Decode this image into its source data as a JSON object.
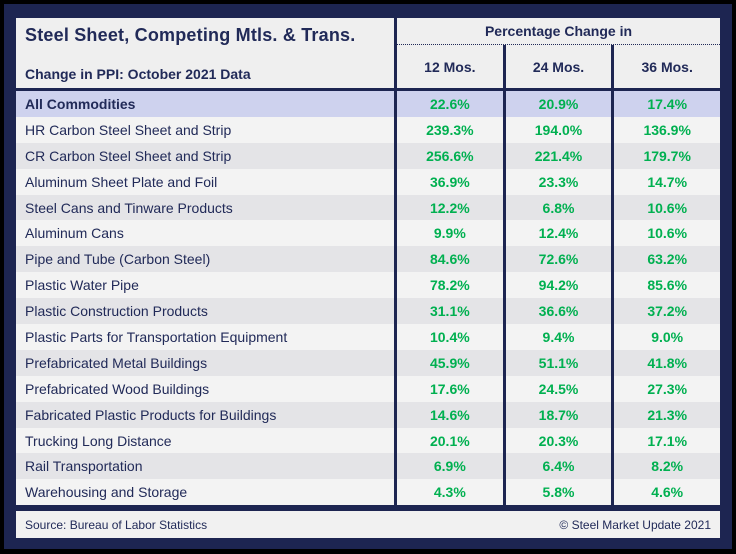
{
  "header": {
    "title": "Steel Sheet, Competing Mtls. & Trans.",
    "subtitle": "Change in PPI: October 2021 Data",
    "group_label": "Percentage Change in",
    "columns": [
      "12 Mos.",
      "24 Mos.",
      "36 Mos."
    ]
  },
  "table": {
    "rows": [
      {
        "label": "All Commodities",
        "m12": "22.6%",
        "m24": "20.9%",
        "m36": "17.4%"
      },
      {
        "label": "HR Carbon Steel Sheet and Strip",
        "m12": "239.3%",
        "m24": "194.0%",
        "m36": "136.9%"
      },
      {
        "label": "CR Carbon Steel Sheet and Strip",
        "m12": "256.6%",
        "m24": "221.4%",
        "m36": "179.7%"
      },
      {
        "label": "Aluminum Sheet Plate and Foil",
        "m12": "36.9%",
        "m24": "23.3%",
        "m36": "14.7%"
      },
      {
        "label": "Steel Cans and Tinware Products",
        "m12": "12.2%",
        "m24": "6.8%",
        "m36": "10.6%"
      },
      {
        "label": "Aluminum Cans",
        "m12": "9.9%",
        "m24": "12.4%",
        "m36": "10.6%"
      },
      {
        "label": "Pipe and Tube (Carbon Steel)",
        "m12": "84.6%",
        "m24": "72.6%",
        "m36": "63.2%"
      },
      {
        "label": "Plastic Water Pipe",
        "m12": "78.2%",
        "m24": "94.2%",
        "m36": "85.6%"
      },
      {
        "label": "Plastic Construction Products",
        "m12": "31.1%",
        "m24": "36.6%",
        "m36": "37.2%"
      },
      {
        "label": "Plastic Parts for Transportation Equipment",
        "m12": "10.4%",
        "m24": "9.4%",
        "m36": "9.0%"
      },
      {
        "label": "Prefabricated Metal Buildings",
        "m12": "45.9%",
        "m24": "51.1%",
        "m36": "41.8%"
      },
      {
        "label": "Prefabricated Wood Buildings",
        "m12": "17.6%",
        "m24": "24.5%",
        "m36": "27.3%"
      },
      {
        "label": "Fabricated Plastic Products for Buildings",
        "m12": "14.6%",
        "m24": "18.7%",
        "m36": "21.3%"
      },
      {
        "label": "Trucking Long Distance",
        "m12": "20.1%",
        "m24": "20.3%",
        "m36": "17.1%"
      },
      {
        "label": "Rail Transportation",
        "m12": "6.9%",
        "m24": "6.4%",
        "m36": "8.2%"
      },
      {
        "label": "Warehousing and Storage",
        "m12": "4.3%",
        "m24": "5.8%",
        "m36": "4.6%"
      }
    ]
  },
  "footer": {
    "source": "Source: Bureau of Labor Statistics",
    "copyright": "© Steel Market Update 2021"
  },
  "colors": {
    "frame_navy": "#1d2551",
    "text_navy": "#212a58",
    "value_green": "#00b050",
    "highlight_lavender": "#ced2ee",
    "row_light": "#f3f3f3",
    "row_dark": "#e4e4e7"
  },
  "chart_data": {
    "type": "table",
    "title": "Steel Sheet, Competing Mtls. & Trans.",
    "subtitle": "Change in PPI: October 2021 Data",
    "column_group": "Percentage Change in",
    "columns": [
      "12 Mos.",
      "24 Mos.",
      "36 Mos."
    ],
    "units": "%",
    "rows": [
      {
        "label": "All Commodities",
        "values": [
          22.6,
          20.9,
          17.4
        ]
      },
      {
        "label": "HR Carbon Steel Sheet and Strip",
        "values": [
          239.3,
          194.0,
          136.9
        ]
      },
      {
        "label": "CR Carbon Steel Sheet and Strip",
        "values": [
          256.6,
          221.4,
          179.7
        ]
      },
      {
        "label": "Aluminum Sheet Plate and Foil",
        "values": [
          36.9,
          23.3,
          14.7
        ]
      },
      {
        "label": "Steel Cans and Tinware Products",
        "values": [
          12.2,
          6.8,
          10.6
        ]
      },
      {
        "label": "Aluminum Cans",
        "values": [
          9.9,
          12.4,
          10.6
        ]
      },
      {
        "label": "Pipe and Tube (Carbon Steel)",
        "values": [
          84.6,
          72.6,
          63.2
        ]
      },
      {
        "label": "Plastic Water Pipe",
        "values": [
          78.2,
          94.2,
          85.6
        ]
      },
      {
        "label": "Plastic Construction Products",
        "values": [
          31.1,
          36.6,
          37.2
        ]
      },
      {
        "label": "Plastic Parts for Transportation Equipment",
        "values": [
          10.4,
          9.4,
          9.0
        ]
      },
      {
        "label": "Prefabricated Metal Buildings",
        "values": [
          45.9,
          51.1,
          41.8
        ]
      },
      {
        "label": "Prefabricated Wood Buildings",
        "values": [
          17.6,
          24.5,
          27.3
        ]
      },
      {
        "label": "Fabricated Plastic Products for Buildings",
        "values": [
          14.6,
          18.7,
          21.3
        ]
      },
      {
        "label": "Trucking Long Distance",
        "values": [
          20.1,
          20.3,
          17.1
        ]
      },
      {
        "label": "Rail Transportation",
        "values": [
          6.9,
          6.4,
          8.2
        ]
      },
      {
        "label": "Warehousing and Storage",
        "values": [
          4.3,
          5.8,
          4.6
        ]
      }
    ]
  }
}
